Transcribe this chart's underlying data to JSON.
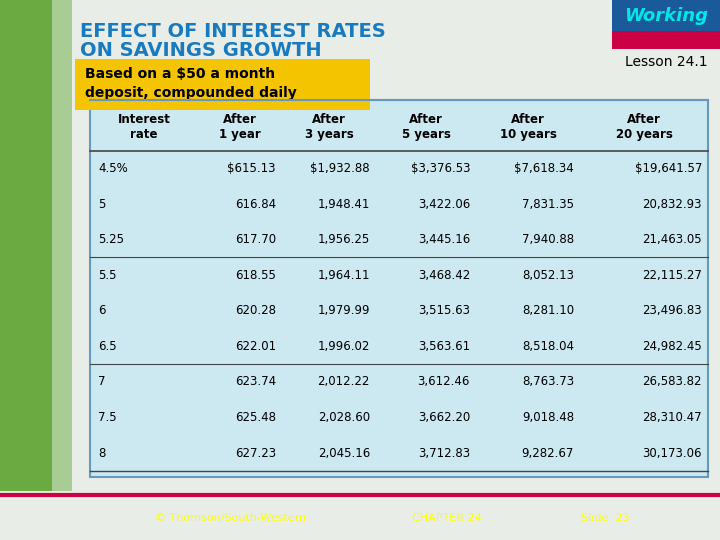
{
  "title_line1": "EFFECT OF INTEREST RATES",
  "title_line2": "ON SAVINGS GROWTH",
  "subtitle_line1": "Based on a $50 a month",
  "subtitle_line2": "deposit, compounded daily",
  "lesson": "Lesson 24.1",
  "working_label": "Working",
  "headers": [
    "Interest\nrate",
    "After\n1 year",
    "After\n3 years",
    "After\n5 years",
    "After\n10 years",
    "After\n20 years"
  ],
  "rows": [
    [
      "4.5%",
      "$615.13",
      "$1,932.88",
      "$3,376.53",
      "$7,618.34",
      "$19,641.57"
    ],
    [
      "5",
      "616.84",
      "1,948.41",
      "3,422.06",
      "7,831.35",
      "20,832.93"
    ],
    [
      "5.25",
      "617.70",
      "1,956.25",
      "3,445.16",
      "7,940.88",
      "21,463.05"
    ],
    [
      "5.5",
      "618.55",
      "1,964.11",
      "3,468.42",
      "8,052.13",
      "22,115.27"
    ],
    [
      "6",
      "620.28",
      "1,979.99",
      "3,515.63",
      "8,281.10",
      "23,496.83"
    ],
    [
      "6.5",
      "622.01",
      "1,996.02",
      "3,563.61",
      "8,518.04",
      "24,982.45"
    ],
    [
      "7",
      "623.74",
      "2,012.22",
      "3,612.46",
      "8,763.73",
      "26,583.82"
    ],
    [
      "7.5",
      "625.48",
      "2,028.60",
      "3,662.20",
      "9,018.48",
      "28,310.47"
    ],
    [
      "8",
      "627.23",
      "2,045.16",
      "3,712.83",
      "9,282.67",
      "30,173.06"
    ]
  ],
  "group_separators_after": [
    2,
    5
  ],
  "bg_left_color": "#7aaa50",
  "bg_right_color": "#f0f0f0",
  "bg_main_color": "#e8ede8",
  "table_bg": "#cce8f0",
  "table_border": "#6699bb",
  "title_color": "#1a7abf",
  "subtitle_bg": "#f5c400",
  "subtitle_text_color": "#000000",
  "footer_bg": "#1a0a0a",
  "footer_text_color": "#ffff00",
  "working_top_bg": "#1a5a9a",
  "working_bottom_bg": "#cc0044",
  "working_text_color": "#00e8e8",
  "footer_left": "© Thomson/South-Western",
  "footer_center": "CHAPTER 24",
  "footer_right": "Slide  23"
}
